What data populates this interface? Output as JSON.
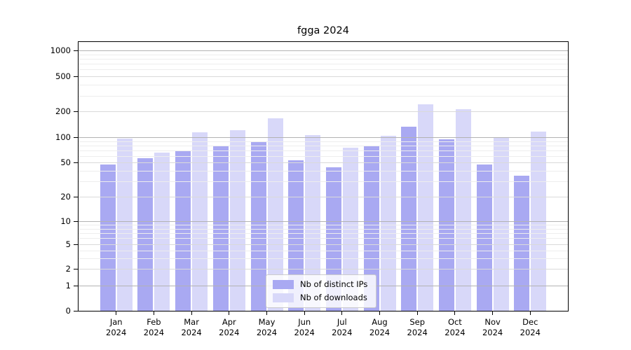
{
  "title": "fgga 2024",
  "chart_data": {
    "type": "bar",
    "title": "fgga 2024",
    "scale": "symlog",
    "grid": true,
    "legend_position": "lower-center",
    "categories": [
      "Jan",
      "Feb",
      "Mar",
      "Apr",
      "May",
      "Jun",
      "Jul",
      "Aug",
      "Sep",
      "Oct",
      "Nov",
      "Dec"
    ],
    "year_label": "2024",
    "yticks": [
      0,
      1,
      2,
      5,
      10,
      20,
      50,
      100,
      200,
      500,
      1000
    ],
    "ylim": [
      0,
      1250
    ],
    "series": [
      {
        "name": "Nb of distinct IPs",
        "color": "#a9a9f2",
        "values": [
          47,
          56,
          70,
          78,
          90,
          53,
          44,
          78,
          133,
          94,
          47,
          35
        ]
      },
      {
        "name": "Nb of downloads",
        "color": "#d8d8f9",
        "values": [
          97,
          65,
          114,
          120,
          165,
          105,
          75,
          103,
          240,
          210,
          100,
          117
        ]
      }
    ]
  }
}
